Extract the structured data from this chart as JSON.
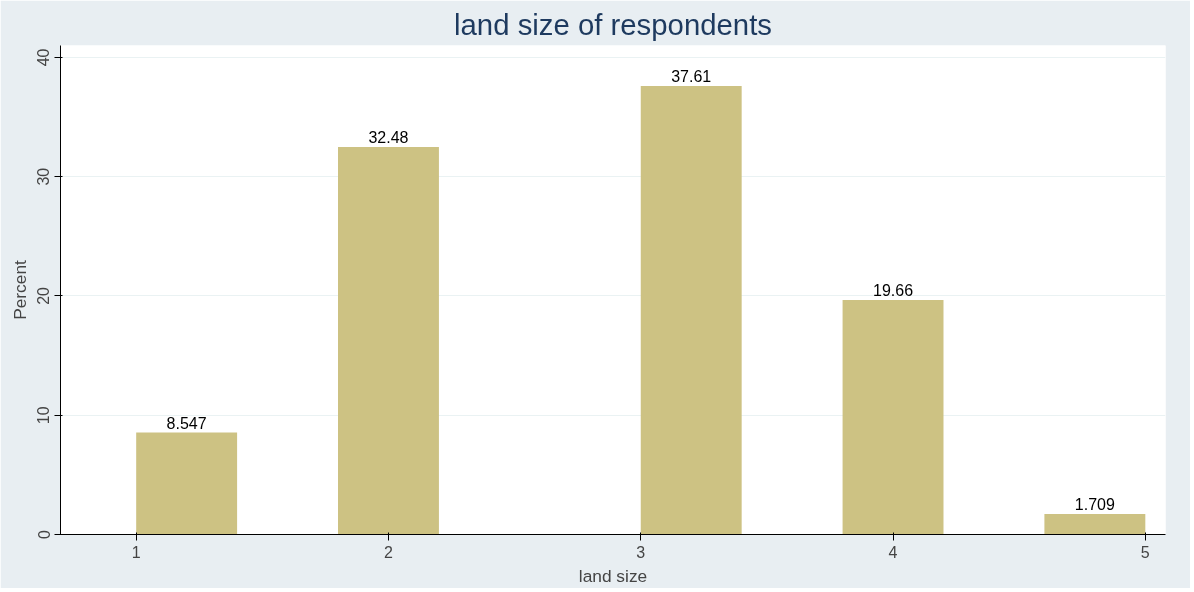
{
  "chart_data": {
    "type": "histogram",
    "title": "land size of respondents",
    "xlabel": "land size",
    "ylabel": "Percent",
    "bins": [
      1,
      1.4,
      1.8,
      2.2,
      2.6,
      3.0,
      3.4,
      3.8,
      4.2,
      4.6,
      5.0
    ],
    "values": [
      8.547,
      0,
      32.48,
      0,
      0,
      37.61,
      0,
      19.66,
      0,
      1.709
    ],
    "value_labels": [
      "8.547",
      null,
      "32.48",
      null,
      null,
      "37.61",
      null,
      "19.66",
      null,
      "1.709"
    ],
    "color": "#cdc283",
    "xlim": [
      0.7,
      5.08
    ],
    "xticks": [
      1,
      2,
      3,
      4,
      5
    ],
    "ylim": [
      0,
      41
    ],
    "yticks": [
      0,
      10,
      20,
      30,
      40
    ],
    "grid": "y"
  }
}
